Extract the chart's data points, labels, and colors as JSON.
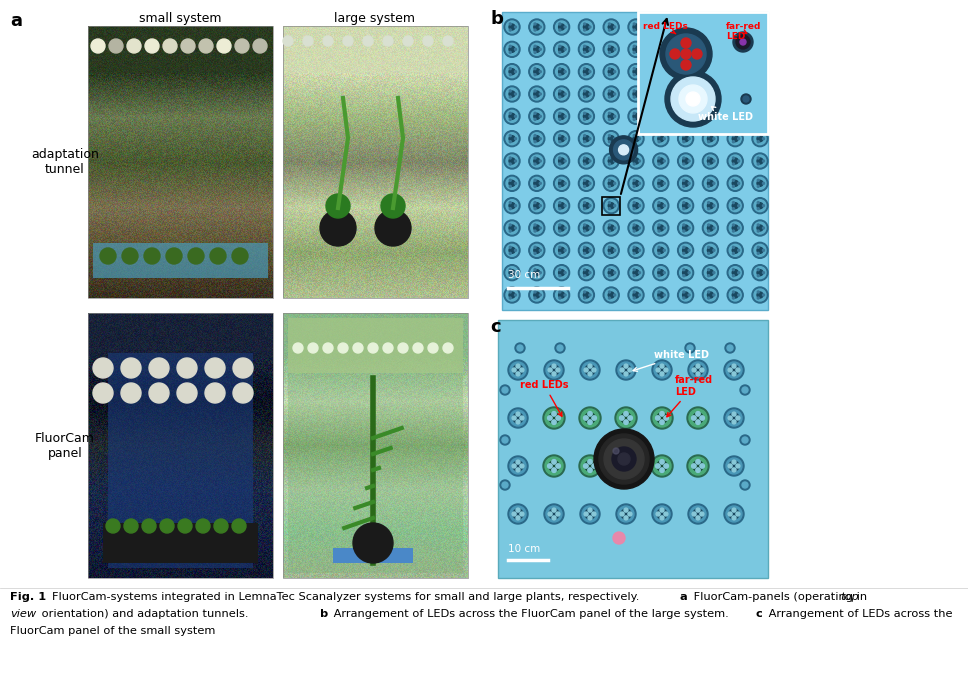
{
  "panel_a_label": "a",
  "panel_b_label": "b",
  "panel_c_label": "c",
  "small_system_label": "small system",
  "large_system_label": "large system",
  "adaptation_tunnel_label": "adaptation\ntunnel",
  "fluorcam_panel_label": "FluorCam\npanel",
  "white_led_label": "white LED",
  "red_leds_label": "red LEDs",
  "far_red_label_b": "far-red\nLED",
  "far_red_label_c": "far-red\nLED",
  "scale_30cm": "30 cm",
  "scale_10cm": "10 cm",
  "bg_color": "#ffffff",
  "panel_b_bg": "#7ec8e0",
  "panel_c_bg": "#7cc4de",
  "led_outer": "#3a7a98",
  "led_mid": "#5aa8c8",
  "led_inner": "#2a5a78",
  "caption_line1": "FluorCam-systems integrated in LemnaTec Scanalyzer systems for small and large plants, respectively. ",
  "caption_line2a": " FluorCam-panels (operating in ",
  "caption_line2_top": "top",
  "caption_line2b": "",
  "caption_line3_view": "view",
  "caption_line3b": " orientation) and adaptation tunnels. ",
  "caption_line3c_b": " Arrangement of LEDs across the FluorCam panel of the large system. ",
  "caption_line3c_c": " Arrangement of LEDs across the",
  "caption_line4": "FluorCam panel of the small system",
  "photo_a_tl_colors": [
    "#3a3020",
    "#5a5030",
    "#7a7050",
    "#4a5a30",
    "#6a7a50",
    "#2a3a20"
  ],
  "photo_a_tr_colors": [
    "#b0c090",
    "#90a870",
    "#c0d0a0",
    "#808868",
    "#a0b880",
    "#d0dab0"
  ],
  "photo_a_bl_colors": [
    "#101830",
    "#152040",
    "#1a2848",
    "#202830",
    "#0a1020",
    "#182238"
  ],
  "photo_a_br_colors": [
    "#a0b890",
    "#90c898",
    "#b0d0a8",
    "#80a870",
    "#c0d8b0",
    "#88b888"
  ]
}
